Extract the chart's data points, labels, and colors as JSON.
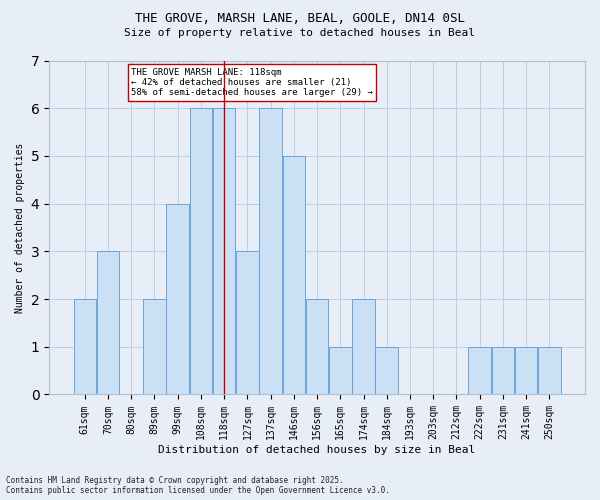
{
  "title1": "THE GROVE, MARSH LANE, BEAL, GOOLE, DN14 0SL",
  "title2": "Size of property relative to detached houses in Beal",
  "xlabel": "Distribution of detached houses by size in Beal",
  "ylabel": "Number of detached properties",
  "categories": [
    "61sqm",
    "70sqm",
    "80sqm",
    "89sqm",
    "99sqm",
    "108sqm",
    "118sqm",
    "127sqm",
    "137sqm",
    "146sqm",
    "156sqm",
    "165sqm",
    "174sqm",
    "184sqm",
    "193sqm",
    "203sqm",
    "212sqm",
    "222sqm",
    "231sqm",
    "241sqm",
    "250sqm"
  ],
  "values": [
    2,
    3,
    0,
    2,
    4,
    6,
    6,
    3,
    6,
    5,
    2,
    1,
    2,
    1,
    0,
    0,
    0,
    1,
    1,
    1,
    1
  ],
  "bar_color": "#cce0f5",
  "bar_edge_color": "#5b9bd5",
  "reference_line_index": 6,
  "reference_line_color": "#c00000",
  "ylim": [
    0,
    7
  ],
  "yticks": [
    0,
    1,
    2,
    3,
    4,
    5,
    6,
    7
  ],
  "annotation_text": "THE GROVE MARSH LANE: 118sqm\n← 42% of detached houses are smaller (21)\n58% of semi-detached houses are larger (29) →",
  "annotation_box_color": "#ffffff",
  "annotation_box_edge_color": "#c00000",
  "footer1": "Contains HM Land Registry data © Crown copyright and database right 2025.",
  "footer2": "Contains public sector information licensed under the Open Government Licence v3.0.",
  "background_color": "#e8eef7",
  "title_fontsize": 9,
  "subtitle_fontsize": 8,
  "xlabel_fontsize": 8,
  "ylabel_fontsize": 7,
  "tick_fontsize": 7,
  "annotation_fontsize": 6.5,
  "footer_fontsize": 5.5
}
